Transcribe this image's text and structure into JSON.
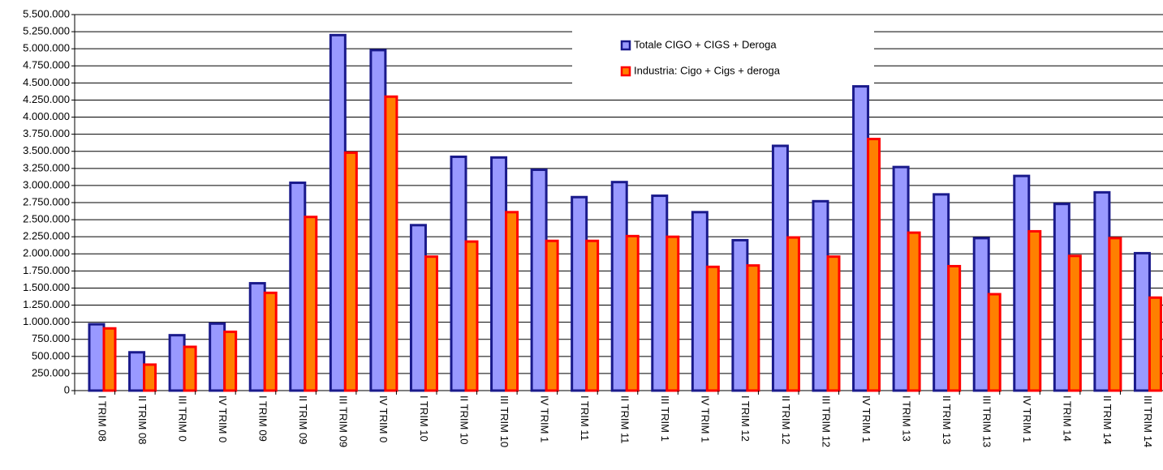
{
  "chart_data": {
    "type": "bar",
    "categories": [
      "I TRIM 08",
      "II TRIM 08",
      "III TRIM 0",
      "IV TRIM 0",
      "I TRIM 09",
      "II TRIM 09",
      "III TRIM 09",
      "IV TRIM 0",
      "I TRIM 10",
      "II TRIM 10",
      "III TRIM 10",
      "IV TRIM 1",
      "I TRIM 11",
      "II TRIM 11",
      "III TRIM 1",
      "IV TRIM 1",
      "I TRIM 12",
      "II TRIM 12",
      "III TRIM 12",
      "IV TRIM 1",
      "I TRIM 13",
      "II TRIM 13",
      "III TRIM 13",
      "IV TRIM 1",
      "I TRIM 14",
      "II TRIM 14",
      "III TRIM 14"
    ],
    "series": [
      {
        "name": "Totale CIGO + CIGS + Deroga",
        "color": "#9999ff",
        "stroke": "#1a1a8c",
        "values": [
          970000,
          560000,
          810000,
          980000,
          1570000,
          3040000,
          5200000,
          4980000,
          2420000,
          3420000,
          3410000,
          3230000,
          2830000,
          3050000,
          2850000,
          2610000,
          2200000,
          3580000,
          2770000,
          4450000,
          3270000,
          2870000,
          2230000,
          3140000,
          2730000,
          2900000,
          2010000
        ]
      },
      {
        "name": "Industria: Cigo + Cigs + deroga",
        "color": "#ff8000",
        "stroke": "#ff0000",
        "values": [
          910000,
          380000,
          640000,
          860000,
          1430000,
          2540000,
          3480000,
          4300000,
          1960000,
          2180000,
          2610000,
          2190000,
          2190000,
          2260000,
          2250000,
          1810000,
          1830000,
          2240000,
          1960000,
          3680000,
          2310000,
          1820000,
          1410000,
          2330000,
          1970000,
          2230000,
          1360000
        ]
      }
    ],
    "ylim": [
      0,
      5500000
    ],
    "yticks": [
      0,
      {
        "value": 250000,
        "label": "250.000"
      },
      {
        "value": 500000,
        "label": "500.000"
      },
      {
        "value": 750000,
        "label": "750.000"
      },
      {
        "value": 1000000,
        "label": "1.000.000"
      },
      {
        "value": 1250000,
        "label": "1.250.000"
      },
      {
        "value": 1500000,
        "label": "1.500.000"
      },
      {
        "value": 1750000,
        "label": "1.750.000"
      },
      {
        "value": 2000000,
        "label": "2.000.000"
      },
      {
        "value": 2250000,
        "label": "2.250.000"
      },
      {
        "value": 2500000,
        "label": "2.500.000"
      },
      {
        "value": 2750000,
        "label": "2.750.000"
      },
      {
        "value": 3000000,
        "label": "3.000.000"
      },
      {
        "value": 3250000,
        "label": "3.250.000"
      },
      {
        "value": 3500000,
        "label": "3.500.000"
      },
      {
        "value": 3750000,
        "label": "3.750.000"
      },
      {
        "value": 4000000,
        "label": "4.000.000"
      },
      {
        "value": 4250000,
        "label": "4.250.000"
      },
      {
        "value": 4500000,
        "label": "4.500.000"
      },
      {
        "value": 4750000,
        "label": "4.750.000"
      },
      {
        "value": 5000000,
        "label": "5.000.000"
      },
      {
        "value": 5250000,
        "label": "5.250.000"
      },
      {
        "value": 5500000,
        "label": "5.500.000"
      }
    ],
    "grid": true
  }
}
